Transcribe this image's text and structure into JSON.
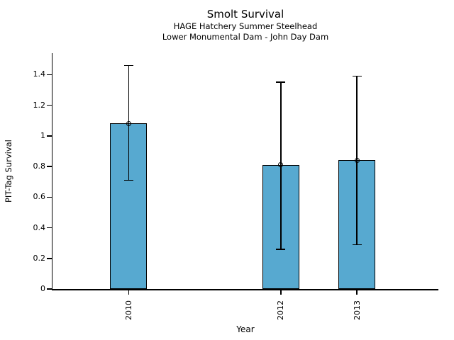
{
  "chart_data": {
    "type": "bar",
    "title": "Smolt Survival",
    "subtitle_line1": "HAGE Hatchery Summer Steelhead",
    "subtitle_line2": "Lower Monumental Dam - John Day Dam",
    "xlabel": "Year",
    "ylabel": "PIT-Tag Survival",
    "categories": [
      "2010",
      "2012",
      "2013"
    ],
    "x_values": [
      2010,
      2012,
      2013
    ],
    "values": [
      1.08,
      0.81,
      0.84
    ],
    "error_low": [
      0.71,
      0.26,
      0.29
    ],
    "error_high": [
      1.46,
      1.35,
      1.39
    ],
    "yticks": [
      0,
      0.2,
      0.4,
      0.6,
      0.8,
      1,
      1.2,
      1.4
    ],
    "ytick_labels": [
      "0",
      "0.2",
      "0.4",
      "0.6",
      "0.8",
      "1",
      "1.2",
      "1.4"
    ],
    "ylim": [
      0,
      1.54
    ],
    "x_range": [
      2009.0,
      2014.07
    ],
    "bar_color": "#57A9D0",
    "edge_color": "#000000",
    "grid": false,
    "legend": "none",
    "marker": "open-circle",
    "error_bars": true
  }
}
